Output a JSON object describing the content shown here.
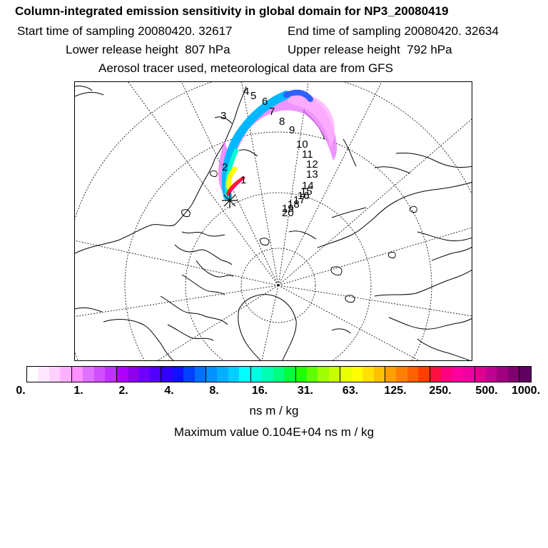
{
  "header": {
    "title": "Column-integrated emission sensitivity in global domain for NP3_20080419",
    "start": "Start time of sampling 20080420. 32617",
    "end": "End time of sampling 20080420. 32634",
    "lower": "Lower release height  807 hPa",
    "upper": "Upper release height  792 hPa",
    "tracer": "Aerosol tracer used, meteorological data are from GFS"
  },
  "map": {
    "release_marker": "star-marker",
    "time_labels": [
      "1",
      "2",
      "3",
      "4",
      "5",
      "6",
      "7",
      "8",
      "9",
      "10",
      "11",
      "12",
      "13",
      "14",
      "15",
      "16",
      "17",
      "18",
      "19",
      "20"
    ]
  },
  "colorbar": {
    "colors": [
      "#ffffff",
      "#ffe8ff",
      "#ffd0ff",
      "#ffb0ff",
      "#ff90ff",
      "#e070ff",
      "#d050ff",
      "#c030ff",
      "#b000ff",
      "#9000f0",
      "#7000ff",
      "#5000ff",
      "#3000ff",
      "#1010ff",
      "#0040ff",
      "#0070ff",
      "#0090ff",
      "#00b0ff",
      "#00d0ff",
      "#00ffff",
      "#00ffe0",
      "#00ffb0",
      "#00ff80",
      "#00ff40",
      "#20ff00",
      "#60ff00",
      "#a0ff00",
      "#c8ff00",
      "#e8ff00",
      "#ffff00",
      "#ffe000",
      "#ffc000",
      "#ffa000",
      "#ff8000",
      "#ff6000",
      "#ff4000",
      "#ff1040",
      "#ff0080",
      "#ff00a0",
      "#f000a0",
      "#e00090",
      "#c00090",
      "#a00080",
      "#800070",
      "#600060"
    ],
    "ticks": [
      "0.",
      "1.",
      "2.",
      "4.",
      "8.",
      "16.",
      "31.",
      "63.",
      "125.",
      "250.",
      "500.",
      "1000."
    ],
    "units": "ns m / kg",
    "maximum": "Maximum value  0.104E+04 ns m / kg"
  }
}
